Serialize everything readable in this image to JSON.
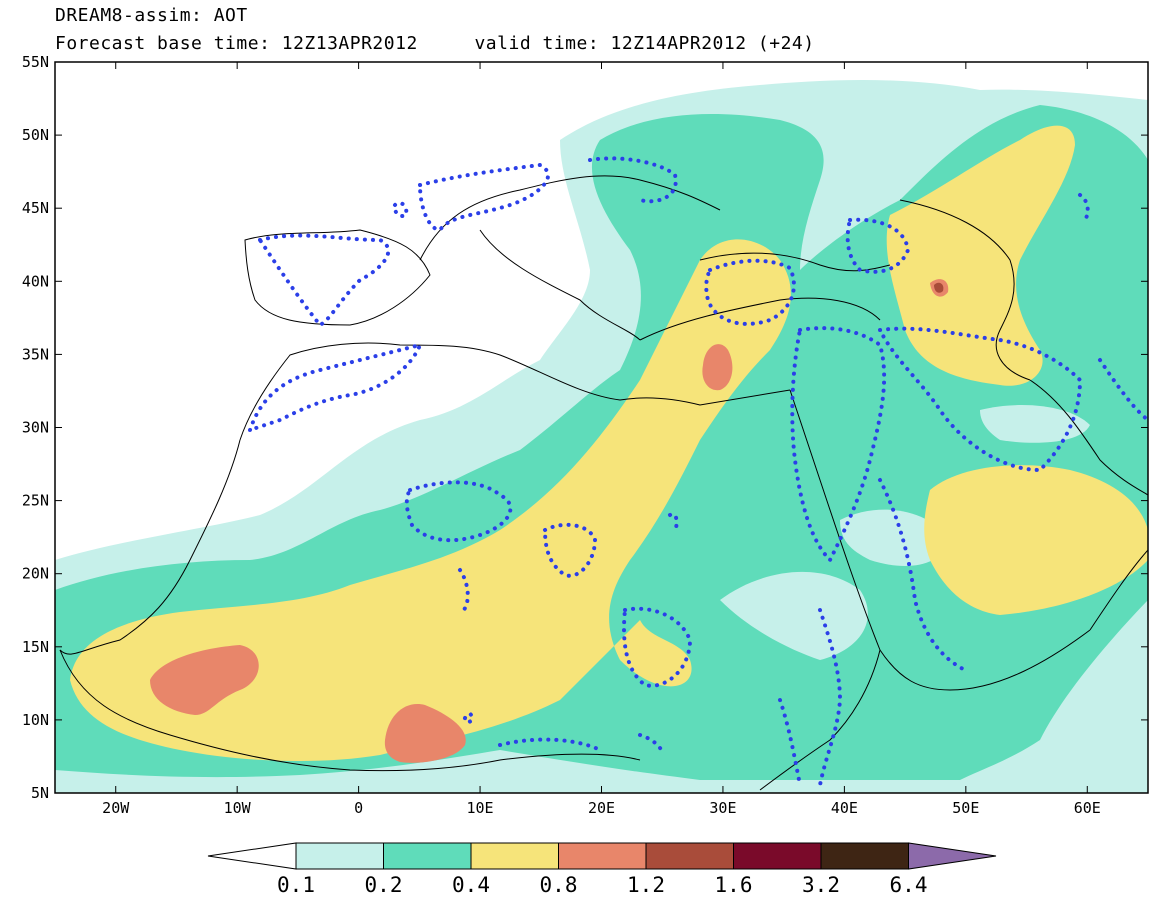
{
  "header": {
    "title_line1": "DREAM8-assim: AOT",
    "title_line2": "Forecast base time: 12Z13APR2012     valid time: 12Z14APR2012 (+24)"
  },
  "map": {
    "lon_range": [
      -25,
      65
    ],
    "lat_range": [
      5,
      55
    ],
    "lat_ticks": [
      "55N",
      "50N",
      "45N",
      "40N",
      "35N",
      "30N",
      "25N",
      "20N",
      "15N",
      "10N",
      "5N"
    ],
    "lon_ticks": [
      "20W",
      "10W",
      "0",
      "10E",
      "20E",
      "30E",
      "40E",
      "50E",
      "60E"
    ],
    "colors": {
      "c1": "#c6f0ea",
      "c2": "#5fdcba",
      "c3": "#f6e47a",
      "c4": "#e8866a",
      "c5": "#a94c3a",
      "c6": "#7a0a2a",
      "c7": "#3e2514",
      "c8": "#8c6aaa",
      "dotted_contour": "#2b3fe8",
      "coastline": "#000000"
    }
  },
  "colorbar": {
    "labels": [
      "0.1",
      "0.2",
      "0.4",
      "0.8",
      "1.2",
      "1.6",
      "3.2",
      "6.4"
    ],
    "colors": [
      "#ffffff",
      "#c6f0ea",
      "#5fdcba",
      "#f6e47a",
      "#e8866a",
      "#a94c3a",
      "#7a0a2a",
      "#3e2514",
      "#8c6aaa"
    ]
  }
}
